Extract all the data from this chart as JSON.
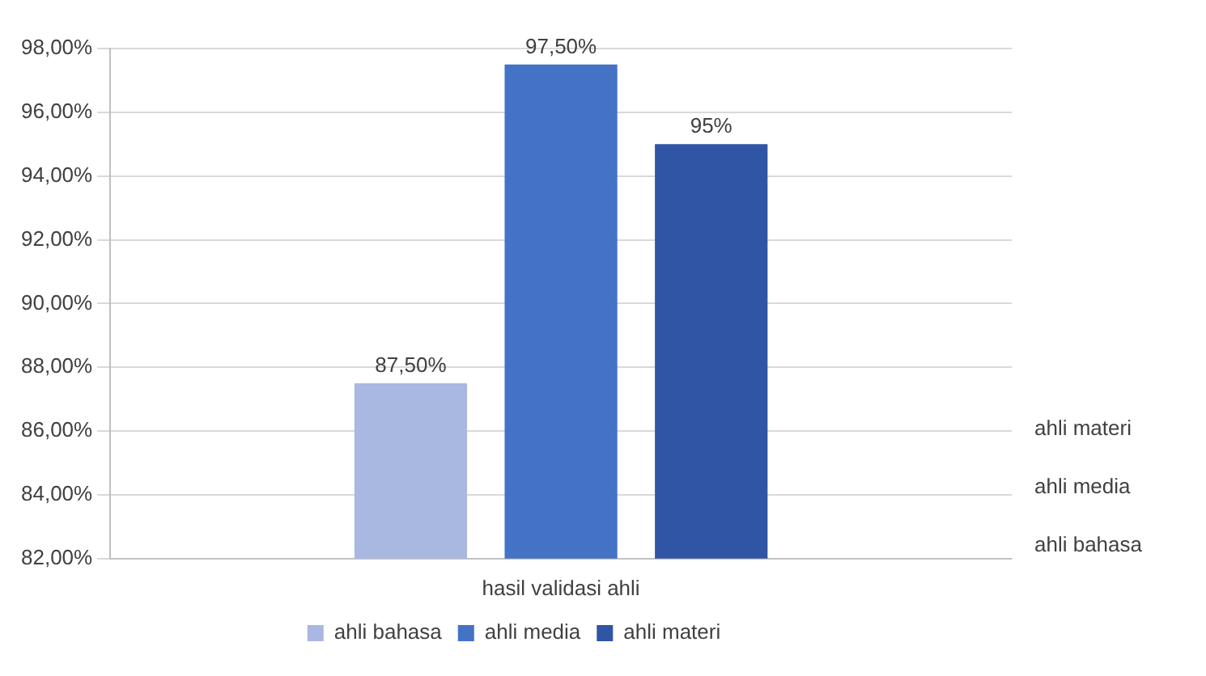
{
  "chart_data": {
    "type": "bar",
    "categories": [
      "hasil validasi ahli"
    ],
    "series": [
      {
        "name": "ahli bahasa",
        "color": "#a9b8e0",
        "values": [
          87.5
        ],
        "value_labels": [
          "87,50%"
        ]
      },
      {
        "name": "ahli media",
        "color": "#4472c4",
        "values": [
          97.5
        ],
        "value_labels": [
          "97,50%"
        ]
      },
      {
        "name": "ahli materi",
        "color": "#2f55a4",
        "values": [
          95
        ],
        "value_labels": [
          "95%"
        ]
      }
    ],
    "ylim": [
      82,
      98
    ],
    "yticks": [
      {
        "value": 82,
        "label": "82,00%"
      },
      {
        "value": 84,
        "label": "84,00%"
      },
      {
        "value": 86,
        "label": "86,00%"
      },
      {
        "value": 88,
        "label": "88,00%"
      },
      {
        "value": 90,
        "label": "90,00%"
      },
      {
        "value": 92,
        "label": "92,00%"
      },
      {
        "value": 94,
        "label": "94,00%"
      },
      {
        "value": 96,
        "label": "96,00%"
      },
      {
        "value": 98,
        "label": "98,00%"
      }
    ],
    "annotations": [
      "ahli materi",
      "ahli media",
      "ahli bahasa"
    ],
    "grid": "y",
    "legend": "bottom"
  }
}
